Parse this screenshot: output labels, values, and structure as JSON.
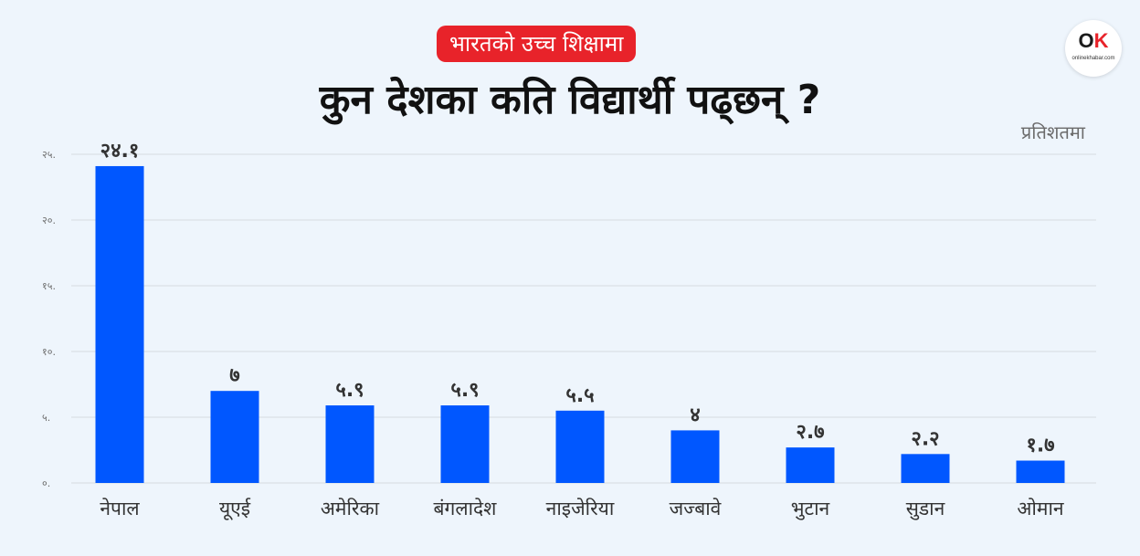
{
  "header": {
    "badge": "भारतको उच्च शिक्षामा",
    "title": "कुन देशका कति विद्यार्थी पढ्छन् ?",
    "unit": "प्रतिशतमा",
    "logo_text": "OK",
    "logo_subtext": "onlinekhabar.com"
  },
  "colors": {
    "bar": "#0057ff",
    "badge": "#e8232a",
    "grid": "#d6dbe0",
    "background": "#eef5fc"
  },
  "chart_data": {
    "type": "bar",
    "title": "कुन देशका कति विद्यार्थी पढ्छन् ?",
    "ylabel": "प्रतिशतमा",
    "xlabel": "",
    "categories": [
      "नेपाल",
      "यूएई",
      "अमेरिका",
      "बंगलादेश",
      "नाइजेरिया",
      "जज्बावे",
      "भुटान",
      "सुडान",
      "ओमान"
    ],
    "values": [
      24.1,
      7,
      5.9,
      5.9,
      5.5,
      4,
      2.7,
      2.2,
      1.7
    ],
    "value_labels": [
      "२४.१",
      "७",
      "५.९",
      "५.९",
      "५.५",
      "४",
      "२.७",
      "२.२",
      "१.७"
    ],
    "ylim": [
      0,
      25
    ],
    "yticks": [
      0,
      5,
      10,
      15,
      20,
      25
    ],
    "ytick_labels": [
      "०.",
      "५.",
      "१०.",
      "१५.",
      "२०.",
      "२५."
    ],
    "grid": true
  }
}
